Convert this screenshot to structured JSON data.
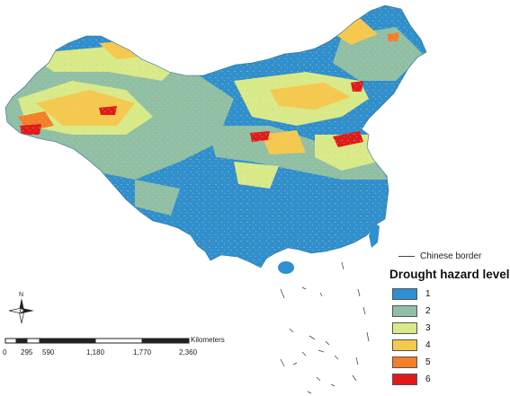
{
  "legend": {
    "title": "Drought hazard level",
    "items": [
      {
        "label": "1",
        "color": "#2f8fcf"
      },
      {
        "label": "2",
        "color": "#8fbfa6"
      },
      {
        "label": "3",
        "color": "#d8ea8a"
      },
      {
        "label": "4",
        "color": "#f5c84f"
      },
      {
        "label": "5",
        "color": "#f27f29"
      },
      {
        "label": "6",
        "color": "#e01b1b"
      }
    ],
    "border_label": "Chinese border"
  },
  "compass": {
    "label": "N"
  },
  "scale_bar": {
    "unit": "Kilometers",
    "ticks": [
      "0",
      "295",
      "590",
      "1,180",
      "1,770",
      "2,360"
    ]
  }
}
